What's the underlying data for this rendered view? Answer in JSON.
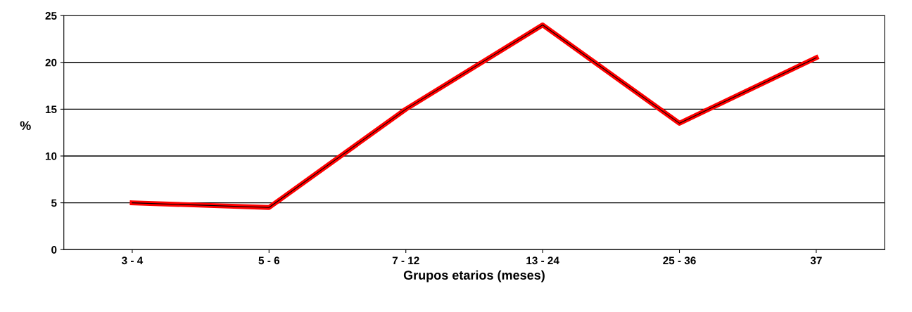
{
  "chart_data": {
    "type": "line",
    "xlabel": "Grupos etarios (meses)",
    "ylabel": "%",
    "categories": [
      "3 - 4",
      "5 - 6",
      "7 - 12",
      "13 - 24",
      "25 - 36",
      "37"
    ],
    "series": [
      {
        "color": "#ff0000",
        "values": [
          5,
          4.5,
          15,
          24,
          13.5,
          20.5
        ]
      }
    ],
    "ylim": [
      0,
      25
    ],
    "yticks": [
      0,
      5,
      10,
      15,
      20,
      25
    ],
    "grid": "y",
    "marker": "none",
    "line_style": "solid"
  }
}
